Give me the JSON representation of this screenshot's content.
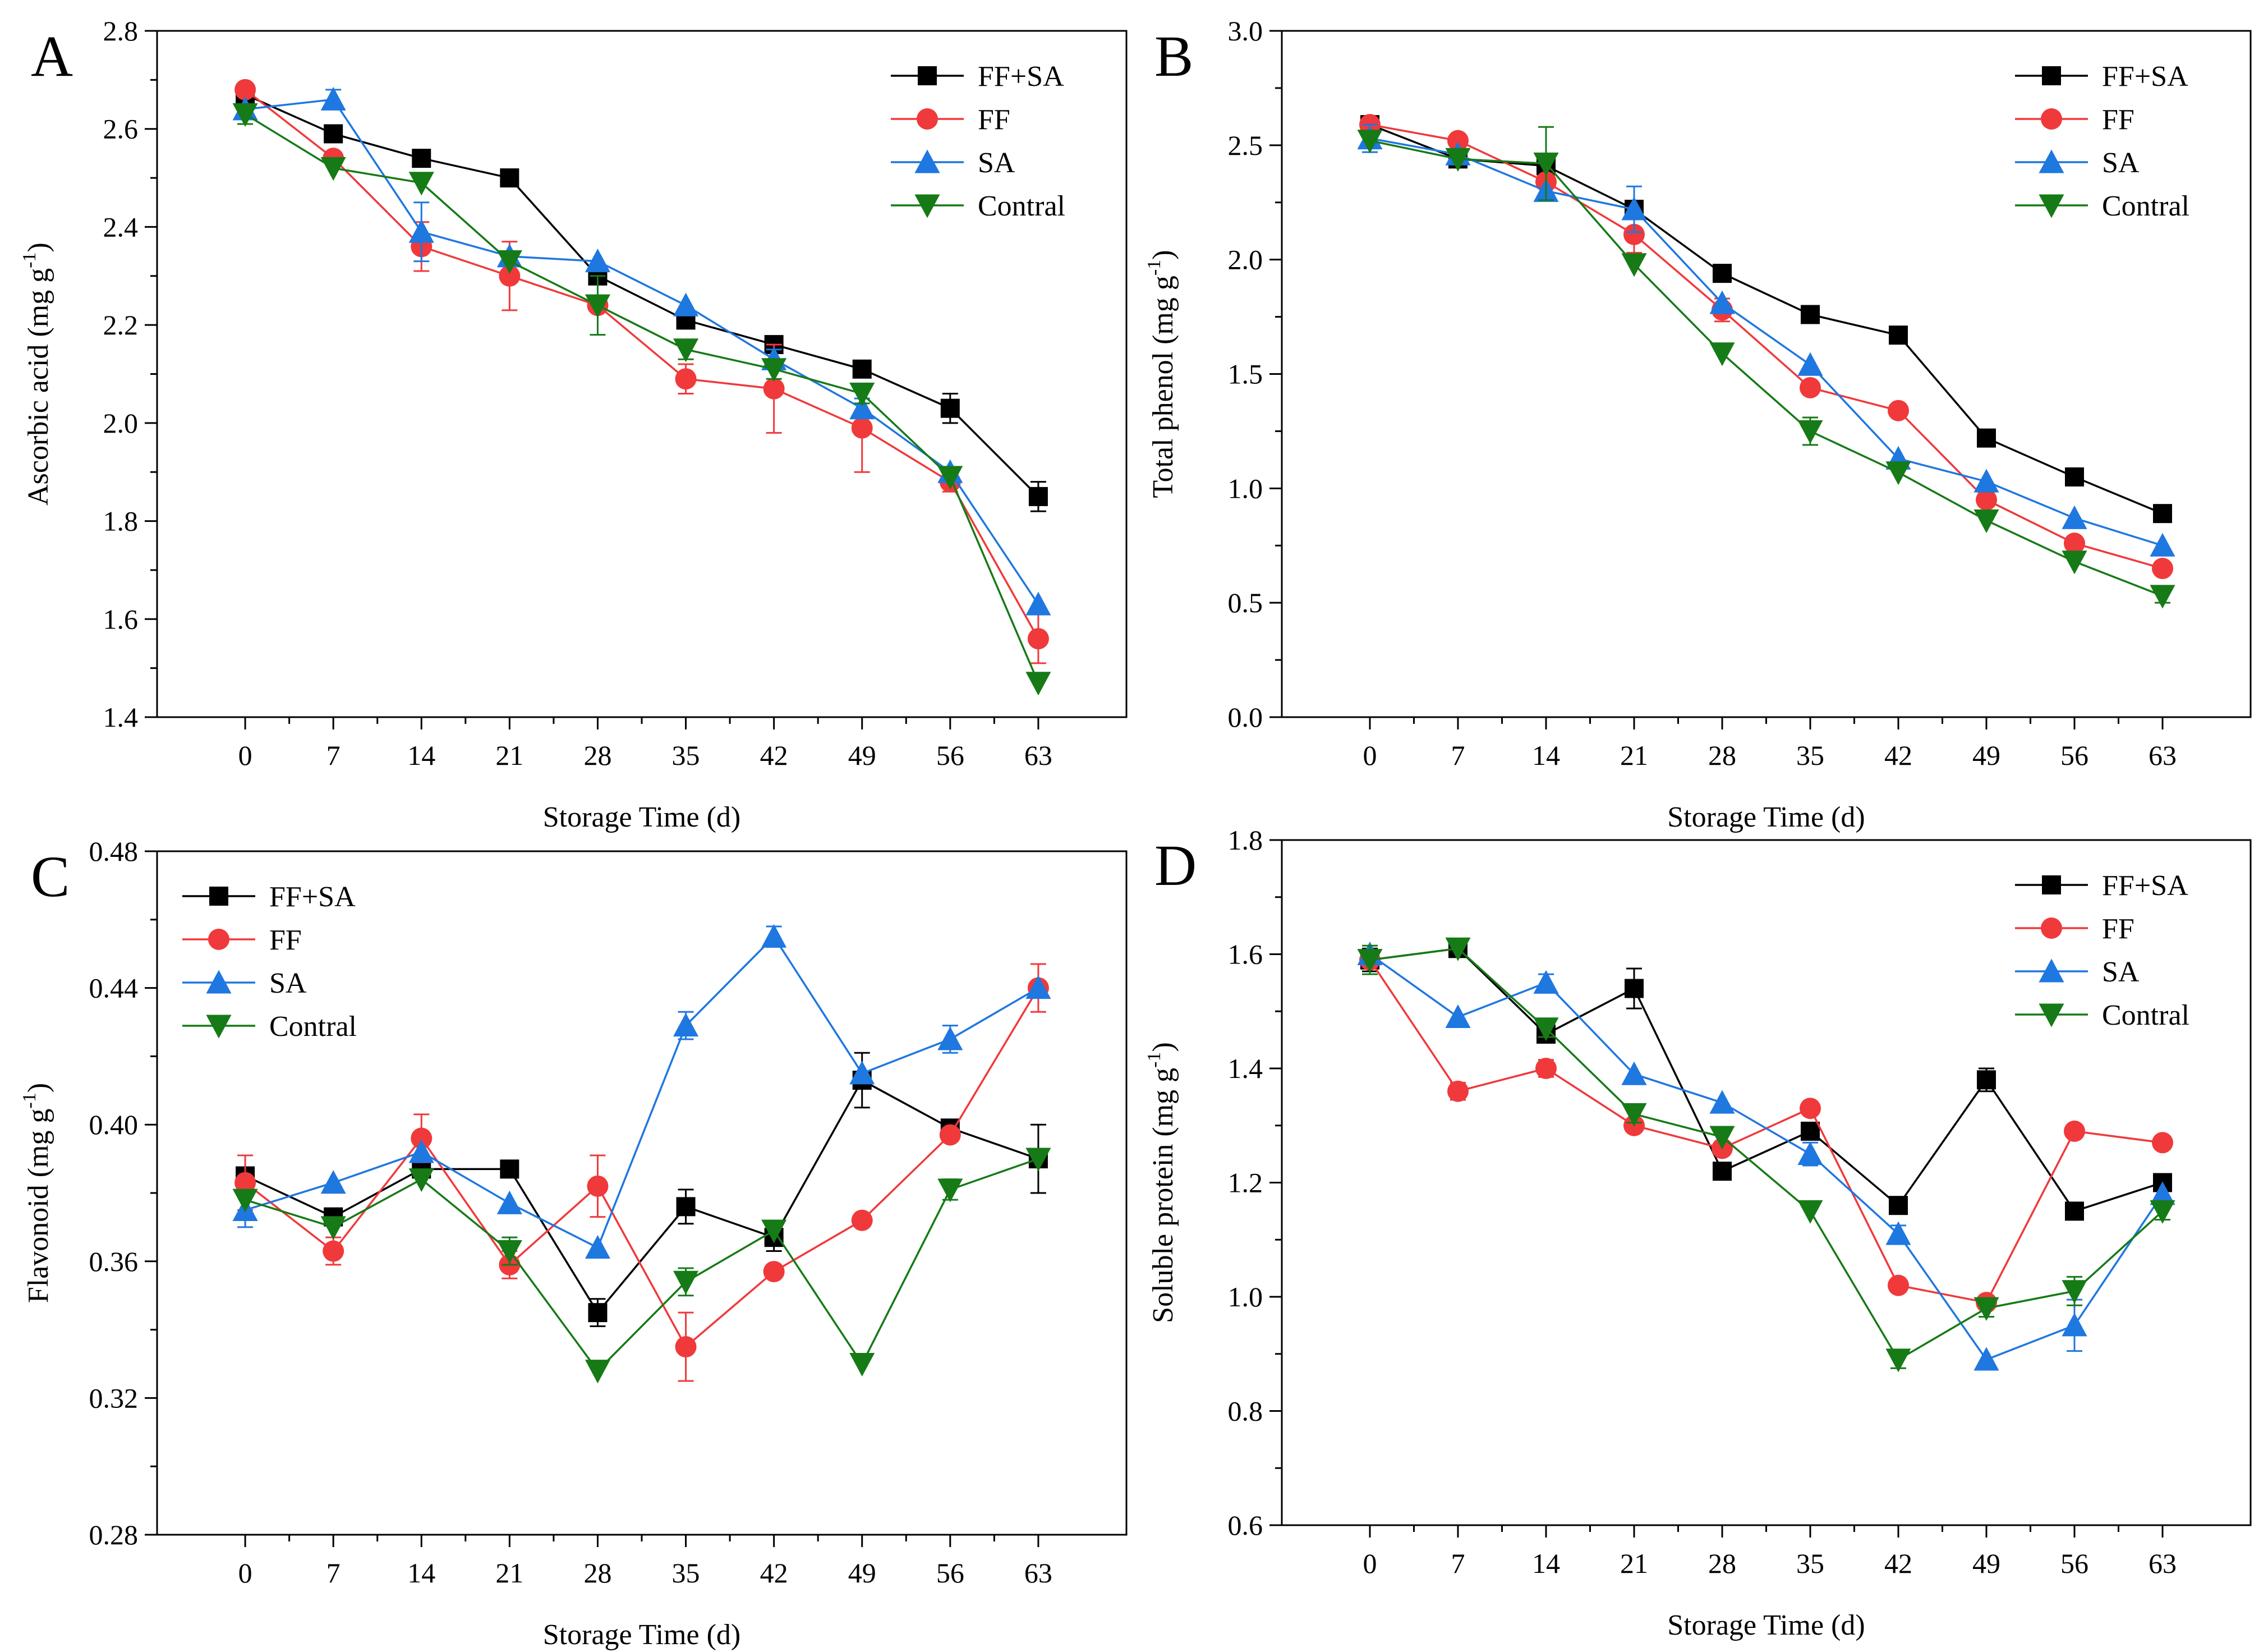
{
  "colors": {
    "FF+SA": "#000000",
    "FF": "#f0393b",
    "SA": "#1f77e0",
    "Contral": "#167a17"
  },
  "chart_data": [
    {
      "panel": "A",
      "type": "line",
      "title": "",
      "xlabel": "Storage Time (d)",
      "ylabel": "Ascorbic acid (mg g-1)",
      "ylabel_parts": {
        "base": "Ascorbic acid (mg g",
        "sup": "-1",
        "close": ")"
      },
      "x": [
        0,
        7,
        14,
        21,
        28,
        35,
        42,
        49,
        56,
        63
      ],
      "x_tick_labels": [
        "0",
        "7",
        "14",
        "21",
        "28",
        "35",
        "42",
        "49",
        "56",
        "63"
      ],
      "xlim": [
        -7,
        70
      ],
      "ylim": [
        1.4,
        2.8
      ],
      "y_ticks": [
        1.4,
        1.6,
        1.8,
        2.0,
        2.2,
        2.4,
        2.6,
        2.8
      ],
      "y_tick_labels": [
        "1.4",
        "1.6",
        "1.8",
        "2.0",
        "2.2",
        "2.4",
        "2.6",
        "2.8"
      ],
      "legend_position": "top-right",
      "series": [
        {
          "name": "FF+SA",
          "marker": "square",
          "values": [
            2.67,
            2.59,
            2.54,
            2.5,
            2.3,
            2.21,
            2.16,
            2.11,
            2.03,
            1.85
          ],
          "errors": [
            0.01,
            0.0,
            0.0,
            0.0,
            0.0,
            0.0,
            0.0,
            0.0,
            0.03,
            0.03
          ]
        },
        {
          "name": "FF",
          "marker": "circle",
          "values": [
            2.68,
            2.54,
            2.36,
            2.3,
            2.24,
            2.09,
            2.07,
            1.99,
            1.88,
            1.56
          ],
          "errors": [
            0.01,
            0.0,
            0.05,
            0.07,
            0.0,
            0.03,
            0.09,
            0.09,
            0.02,
            0.05
          ]
        },
        {
          "name": "SA",
          "marker": "triangle-up",
          "values": [
            2.64,
            2.66,
            2.39,
            2.34,
            2.33,
            2.24,
            2.13,
            2.03,
            1.9,
            1.63
          ],
          "errors": [
            0.0,
            0.02,
            0.06,
            0.0,
            0.0,
            0.0,
            0.02,
            0.02,
            0.0,
            0.0
          ]
        },
        {
          "name": "Contral",
          "marker": "triangle-down",
          "values": [
            2.63,
            2.52,
            2.49,
            2.33,
            2.24,
            2.15,
            2.11,
            2.06,
            1.89,
            1.47
          ],
          "errors": [
            0.02,
            0.0,
            0.0,
            0.0,
            0.06,
            0.02,
            0.02,
            0.02,
            0.0,
            0.0
          ]
        }
      ]
    },
    {
      "panel": "B",
      "type": "line",
      "title": "",
      "xlabel": "Storage Time (d)",
      "ylabel": "Total phenol (mg g-1)",
      "ylabel_parts": {
        "base": "Total phenol (mg g",
        "sup": "-1",
        "close": ")"
      },
      "x": [
        0,
        7,
        14,
        21,
        28,
        35,
        42,
        49,
        56,
        63
      ],
      "x_tick_labels": [
        "0",
        "7",
        "14",
        "21",
        "28",
        "35",
        "42",
        "49",
        "56",
        "63"
      ],
      "xlim": [
        -7,
        70
      ],
      "ylim": [
        0.0,
        3.0
      ],
      "y_ticks": [
        0.0,
        0.5,
        1.0,
        1.5,
        2.0,
        2.5,
        3.0
      ],
      "y_tick_labels": [
        "0.0",
        "0.5",
        "1.0",
        "1.5",
        "2.0",
        "2.5",
        "3.0"
      ],
      "legend_position": "top-right",
      "series": [
        {
          "name": "FF+SA",
          "marker": "square",
          "values": [
            2.59,
            2.44,
            2.41,
            2.22,
            1.94,
            1.76,
            1.67,
            1.22,
            1.05,
            0.89
          ],
          "errors": [
            0.0,
            0.0,
            0.0,
            0.0,
            0.0,
            0.0,
            0.0,
            0.0,
            0.0,
            0.0
          ]
        },
        {
          "name": "FF",
          "marker": "circle",
          "values": [
            2.59,
            2.52,
            2.34,
            2.11,
            1.78,
            1.44,
            1.34,
            0.95,
            0.76,
            0.65
          ],
          "errors": [
            0.0,
            0.0,
            0.0,
            0.08,
            0.05,
            0.0,
            0.0,
            0.0,
            0.0,
            0.0
          ]
        },
        {
          "name": "SA",
          "marker": "triangle-up",
          "values": [
            2.53,
            2.46,
            2.3,
            2.22,
            1.81,
            1.54,
            1.13,
            1.03,
            0.87,
            0.75
          ],
          "errors": [
            0.06,
            0.0,
            0.0,
            0.1,
            0.0,
            0.0,
            0.0,
            0.0,
            0.0,
            0.0
          ]
        },
        {
          "name": "Contral",
          "marker": "triangle-down",
          "values": [
            2.52,
            2.44,
            2.42,
            1.98,
            1.59,
            1.25,
            1.07,
            0.86,
            0.68,
            0.53
          ],
          "errors": [
            0.0,
            0.0,
            0.16,
            0.0,
            0.0,
            0.06,
            0.0,
            0.0,
            0.0,
            0.03
          ]
        }
      ]
    },
    {
      "panel": "C",
      "type": "line",
      "title": "",
      "xlabel": "Storage Time (d)",
      "ylabel": "Flavonoid (mg g-1)",
      "ylabel_parts": {
        "base": "Flavonoid (mg g",
        "sup": "-1",
        "close": ")"
      },
      "x": [
        0,
        7,
        14,
        21,
        28,
        35,
        42,
        49,
        56,
        63
      ],
      "x_tick_labels": [
        "0",
        "7",
        "14",
        "21",
        "28",
        "35",
        "42",
        "49",
        "56",
        "63"
      ],
      "xlim": [
        -7,
        70
      ],
      "ylim": [
        0.28,
        0.48
      ],
      "y_ticks": [
        0.28,
        0.32,
        0.36,
        0.4,
        0.44,
        0.48
      ],
      "y_tick_labels": [
        "0.28",
        "0.32",
        "0.36",
        "0.40",
        "0.44",
        "0.48"
      ],
      "legend_position": "top-left",
      "series": [
        {
          "name": "FF+SA",
          "marker": "square",
          "values": [
            0.385,
            0.373,
            0.387,
            0.387,
            0.345,
            0.376,
            0.367,
            0.413,
            0.399,
            0.39
          ],
          "errors": [
            0.0,
            0.0,
            0.0,
            0.0,
            0.004,
            0.005,
            0.004,
            0.008,
            0.0,
            0.01
          ]
        },
        {
          "name": "FF",
          "marker": "circle",
          "values": [
            0.383,
            0.363,
            0.396,
            0.359,
            0.382,
            0.335,
            0.357,
            0.372,
            0.397,
            0.44
          ],
          "errors": [
            0.008,
            0.004,
            0.007,
            0.004,
            0.009,
            0.01,
            0.0,
            0.0,
            0.0,
            0.007
          ]
        },
        {
          "name": "SA",
          "marker": "triangle-up",
          "values": [
            0.375,
            0.383,
            0.392,
            0.377,
            0.364,
            0.429,
            0.455,
            0.415,
            0.425,
            0.44
          ],
          "errors": [
            0.005,
            0.0,
            0.0,
            0.0,
            0.0,
            0.004,
            0.003,
            0.0,
            0.004,
            0.0
          ]
        },
        {
          "name": "Contral",
          "marker": "triangle-down",
          "values": [
            0.378,
            0.37,
            0.384,
            0.363,
            0.328,
            0.354,
            0.369,
            0.33,
            0.381,
            0.39
          ],
          "errors": [
            0.0,
            0.0,
            0.0,
            0.004,
            0.0,
            0.004,
            0.0,
            0.0,
            0.003,
            0.0
          ]
        }
      ]
    },
    {
      "panel": "D",
      "type": "line",
      "title": "",
      "xlabel": "Storage Time (d)",
      "ylabel": "Soluble protein (mg g-1)",
      "ylabel_parts": {
        "base": "Soluble protein (mg g",
        "sup": "-1",
        "close": ")"
      },
      "x": [
        0,
        7,
        14,
        21,
        28,
        35,
        42,
        49,
        56,
        63
      ],
      "x_tick_labels": [
        "0",
        "7",
        "14",
        "21",
        "28",
        "35",
        "42",
        "49",
        "56",
        "63"
      ],
      "xlim": [
        -7,
        70
      ],
      "ylim": [
        0.6,
        1.8
      ],
      "y_ticks": [
        0.6,
        0.8,
        1.0,
        1.2,
        1.4,
        1.6,
        1.8
      ],
      "y_tick_labels": [
        "0.6",
        "0.8",
        "1.0",
        "1.2",
        "1.4",
        "1.6",
        "1.8"
      ],
      "legend_position": "top-right",
      "series": [
        {
          "name": "FF+SA",
          "marker": "square",
          "values": [
            1.59,
            1.61,
            1.46,
            1.54,
            1.22,
            1.29,
            1.16,
            1.38,
            1.15,
            1.2
          ],
          "errors": [
            0.02,
            0.0,
            0.0,
            0.035,
            0.0,
            0.0,
            0.0,
            0.02,
            0.0,
            0.0
          ]
        },
        {
          "name": "FF",
          "marker": "circle",
          "values": [
            1.59,
            1.36,
            1.4,
            1.3,
            1.26,
            1.33,
            1.02,
            0.99,
            1.29,
            1.27
          ],
          "errors": [
            0.0,
            0.015,
            0.015,
            0.0,
            0.0,
            0.0,
            0.0,
            0.0,
            0.0,
            0.0
          ]
        },
        {
          "name": "SA",
          "marker": "triangle-up",
          "values": [
            1.6,
            1.49,
            1.55,
            1.39,
            1.34,
            1.25,
            1.11,
            0.89,
            0.95,
            1.18
          ],
          "errors": [
            0.0,
            0.0,
            0.015,
            0.0,
            0.0,
            0.02,
            0.015,
            0.0,
            0.045,
            0.0
          ]
        },
        {
          "name": "Contral",
          "marker": "triangle-down",
          "values": [
            1.59,
            1.61,
            1.47,
            1.32,
            1.28,
            1.15,
            0.89,
            0.98,
            1.01,
            1.15
          ],
          "errors": [
            0.025,
            0.0,
            0.015,
            0.015,
            0.0,
            0.0,
            0.015,
            0.015,
            0.025,
            0.015
          ]
        }
      ]
    }
  ]
}
